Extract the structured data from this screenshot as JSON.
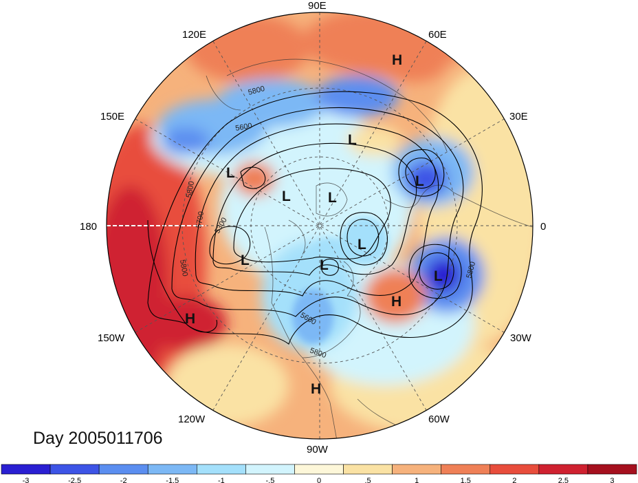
{
  "title": "Day 2005011706",
  "longitude_labels": [
    {
      "id": "lon-90e",
      "text": "90E"
    },
    {
      "id": "lon-60e",
      "text": "60E"
    },
    {
      "id": "lon-30e",
      "text": "30E"
    },
    {
      "id": "lon-0",
      "text": "0"
    },
    {
      "id": "lon-30w",
      "text": "30W"
    },
    {
      "id": "lon-60w",
      "text": "60W"
    },
    {
      "id": "lon-90w",
      "text": "90W"
    },
    {
      "id": "lon-120w",
      "text": "120W"
    },
    {
      "id": "lon-150w",
      "text": "150W"
    },
    {
      "id": "lon-180",
      "text": "180"
    },
    {
      "id": "lon-150e",
      "text": "150E"
    },
    {
      "id": "lon-120e",
      "text": "120E"
    }
  ],
  "pressure_centers": [
    {
      "id": "h-1",
      "text": "H"
    },
    {
      "id": "h-2",
      "text": "H"
    },
    {
      "id": "h-3",
      "text": "H"
    },
    {
      "id": "h-4",
      "text": "H"
    },
    {
      "id": "l-1",
      "text": "L"
    },
    {
      "id": "l-2",
      "text": "L"
    },
    {
      "id": "l-3",
      "text": "L"
    },
    {
      "id": "l-4",
      "text": "L"
    },
    {
      "id": "l-5",
      "text": "L"
    },
    {
      "id": "l-6",
      "text": "L"
    },
    {
      "id": "l-7",
      "text": "L"
    },
    {
      "id": "l-8",
      "text": "L"
    },
    {
      "id": "l-9",
      "text": "L"
    }
  ],
  "contour_labels": [
    {
      "id": "c-5800-a",
      "text": "5800"
    },
    {
      "id": "c-5600-a",
      "text": "5600"
    },
    {
      "id": "c-5800-b",
      "text": "5800"
    },
    {
      "id": "c-5700-a",
      "text": "5700"
    },
    {
      "id": "c-5300-a",
      "text": "5300"
    },
    {
      "id": "c-5800-c",
      "text": "5800"
    },
    {
      "id": "c-5600-b",
      "text": "5600"
    },
    {
      "id": "c-5800-d",
      "text": "5800"
    },
    {
      "id": "c-5800-e",
      "text": "5800"
    }
  ],
  "colorbar": {
    "colors": [
      "#2a1fd2",
      "#3d54e6",
      "#5b8ef0",
      "#7cb8f5",
      "#a4e0fb",
      "#d2f4fd",
      "#fdf7d9",
      "#fae2a4",
      "#f6b27c",
      "#ef8057",
      "#e84d3c",
      "#cf2130",
      "#a5101e"
    ],
    "ticks": [
      "-3",
      "-2.5",
      "-2",
      "-1.5",
      "-1",
      "-.5",
      "0",
      ".5",
      "1",
      "1.5",
      "2",
      "2.5",
      "3"
    ]
  },
  "colors": {
    "ocean_warm": "#ef8057",
    "strong_warm": "#cf2130",
    "cold": "#5b8ef0",
    "very_cold": "#2a1fd2",
    "neutral": "#d2f4fd"
  }
}
